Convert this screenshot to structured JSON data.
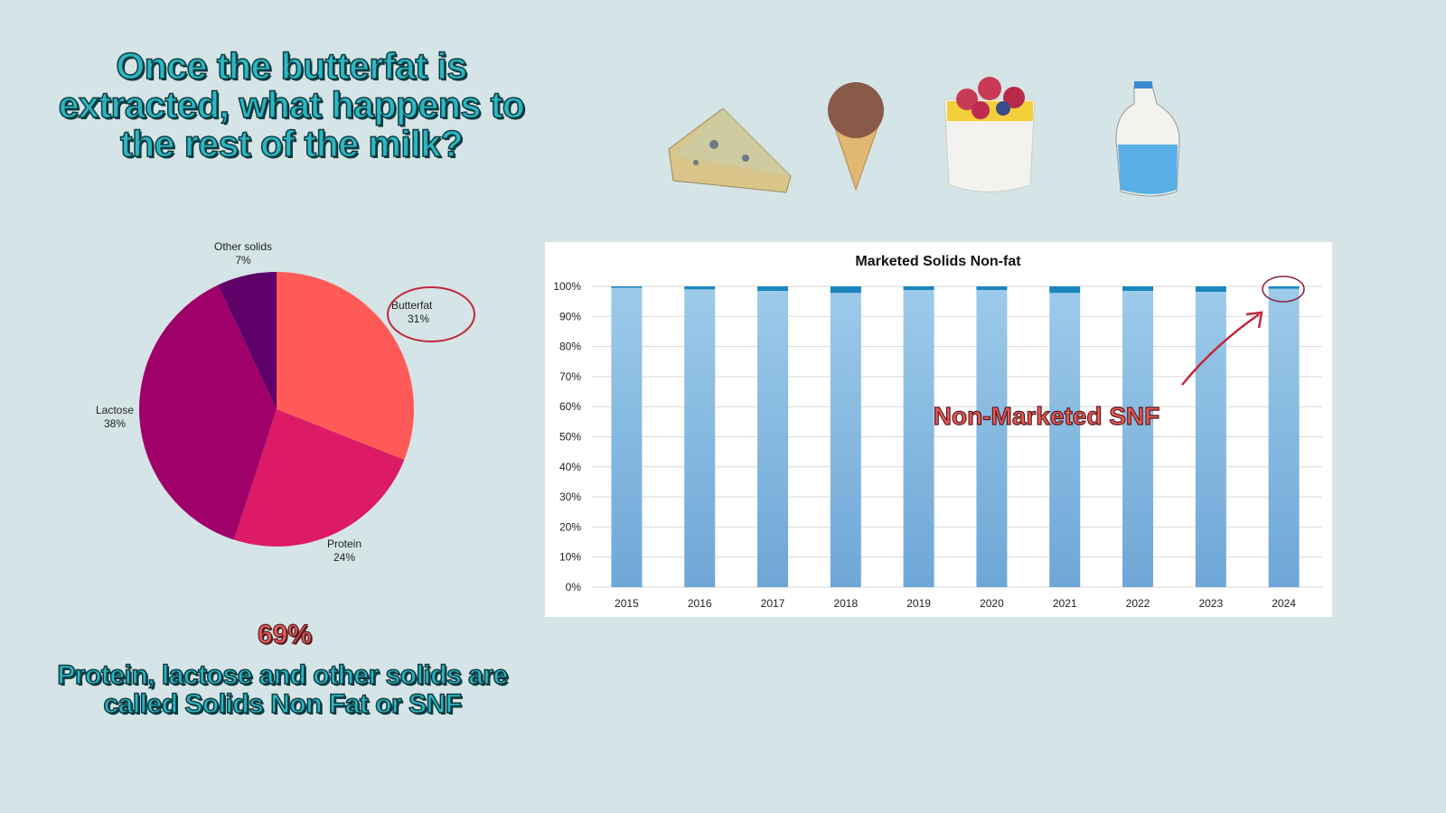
{
  "title": "Once the butterfat is extracted, what happens to the rest of the milk?",
  "snf_percent": "69%",
  "snf_caption": "Protein, lactose and other solids are called Solids Non Fat or SNF",
  "illustrations": [
    "cheese-icon",
    "ice-cream-icon",
    "parfait-icon",
    "milk-jug-icon"
  ],
  "colors": {
    "background": "#d5e4e6",
    "title": "#2cb6c2",
    "butterfat": "#ff5a57",
    "protein": "#dc1a66",
    "lactose": "#a0006a",
    "other": "#5e0068",
    "marketed": "#8fbfe3",
    "non_marketed": "#1a86bd",
    "annotation": "#c0283a"
  },
  "chart_data": [
    {
      "type": "pie",
      "title": "",
      "slices": [
        {
          "label": "Butterfat",
          "value": 31,
          "display": "31%"
        },
        {
          "label": "Protein",
          "value": 24,
          "display": "24%"
        },
        {
          "label": "Lactose",
          "value": 38,
          "display": "38%"
        },
        {
          "label": "Other solids",
          "value": 7,
          "display": "7%"
        }
      ],
      "annotation": "Butterfat circled"
    },
    {
      "type": "bar",
      "stacked": true,
      "title": "Marketed Solids Non-fat",
      "categories": [
        "2015",
        "2016",
        "2017",
        "2018",
        "2019",
        "2020",
        "2021",
        "2022",
        "2023",
        "2024"
      ],
      "series": [
        {
          "name": "Marketed SNF",
          "values": [
            99.5,
            99.0,
            98.5,
            97.8,
            98.8,
            98.8,
            97.8,
            98.5,
            98.2,
            99.2
          ]
        },
        {
          "name": "Non-Marketed SNF",
          "values": [
            0.5,
            1.0,
            1.5,
            2.2,
            1.2,
            1.2,
            2.2,
            1.5,
            1.8,
            0.8
          ]
        }
      ],
      "yticks": [
        "0%",
        "10%",
        "20%",
        "30%",
        "40%",
        "50%",
        "60%",
        "70%",
        "80%",
        "90%",
        "100%"
      ],
      "ylim": [
        0,
        100
      ],
      "grid": true,
      "annotation": "Non-Marketed SNF"
    }
  ]
}
